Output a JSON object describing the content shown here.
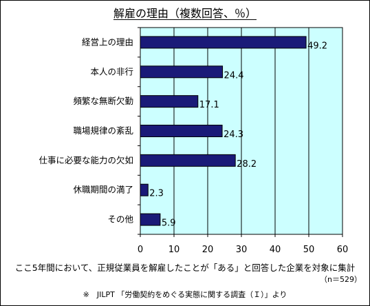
{
  "chart_data": {
    "type": "bar",
    "orientation": "horizontal",
    "title": "解雇の理由（複数回答、％）",
    "categories": [
      "経営上の理由",
      "本人の非行",
      "頻繁な無断欠勤",
      "職場規律の紊乱",
      "仕事に必要な能力の欠如",
      "休職期間の満了",
      "その他"
    ],
    "values": [
      49.2,
      24.4,
      17.1,
      24.3,
      28.2,
      2.3,
      5.9
    ],
    "value_labels": [
      "49.2",
      "24.4",
      "17.1",
      "24.3",
      "28.2",
      "2.3",
      "5.9"
    ],
    "xlim": [
      0,
      60
    ],
    "xticks": [
      "0",
      "10",
      "20",
      "30",
      "40",
      "50",
      "60"
    ],
    "grid": true,
    "colors": {
      "bar": "#1a1a78",
      "plot_background": "#ccffff",
      "grid": "#000000"
    }
  },
  "notes": {
    "main": "ここ5年間において、正規従業員を解雇したことが「ある」と回答した企業を対象に集計",
    "n": "（n＝529）",
    "source": "※　JILPT 「労働契約をめぐる実態に関する調査（Ｉ）」より"
  }
}
